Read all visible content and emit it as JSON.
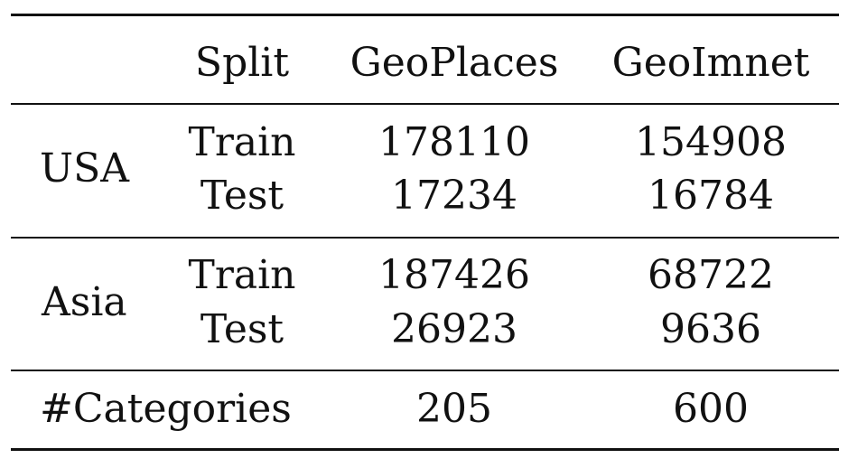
{
  "table": {
    "header": {
      "col0": "",
      "split": "Split",
      "geoplaces": "GeoPlaces",
      "geoimnet": "GeoImnet"
    },
    "usa": {
      "region": "USA",
      "train_label": "Train",
      "test_label": "Test",
      "geoplaces_train": "178110",
      "geoplaces_test": "17234",
      "geoimnet_train": "154908",
      "geoimnet_test": "16784"
    },
    "asia": {
      "region": "Asia",
      "train_label": "Train",
      "test_label": "Test",
      "geoplaces_train": "187426",
      "geoplaces_test": "26923",
      "geoimnet_train": "68722",
      "geoimnet_test": "9636"
    },
    "categories": {
      "label": "#Categories",
      "geoplaces": "205",
      "geoimnet": "600"
    }
  }
}
